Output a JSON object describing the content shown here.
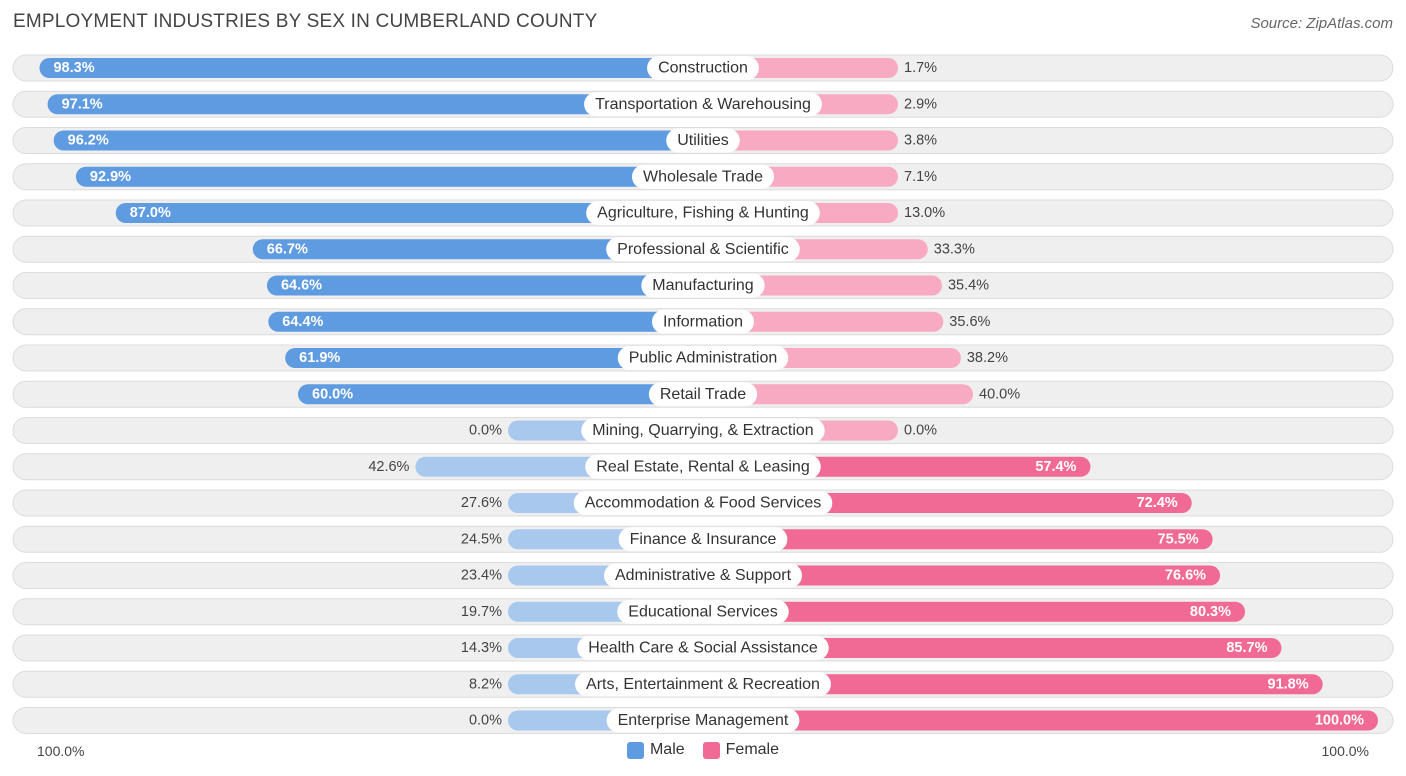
{
  "header": {
    "title": "EMPLOYMENT INDUSTRIES BY SEX IN CUMBERLAND COUNTY",
    "source": "Source: ZipAtlas.com"
  },
  "axis": {
    "left_label": "100.0%",
    "right_label": "100.0%"
  },
  "legend": {
    "male": "Male",
    "female": "Female"
  },
  "colors": {
    "male_strong": "#5f9be0",
    "male_light": "#a9c8ee",
    "female_strong": "#f06a95",
    "female_light": "#f7aac2",
    "row_bg": "#efefef",
    "row_border": "#dcdcdc"
  },
  "chart_data": {
    "type": "bar",
    "title": "EMPLOYMENT INDUSTRIES BY SEX IN CUMBERLAND COUNTY",
    "orientation": "horizontal-diverging",
    "xlim": [
      -100,
      100
    ],
    "categories": [
      "Construction",
      "Transportation & Warehousing",
      "Utilities",
      "Wholesale Trade",
      "Agriculture, Fishing & Hunting",
      "Professional & Scientific",
      "Manufacturing",
      "Information",
      "Public Administration",
      "Retail Trade",
      "Mining, Quarrying, & Extraction",
      "Real Estate, Rental & Leasing",
      "Accommodation & Food Services",
      "Finance & Insurance",
      "Administrative & Support",
      "Educational Services",
      "Health Care & Social Assistance",
      "Arts, Entertainment & Recreation",
      "Enterprise Management"
    ],
    "series": [
      {
        "name": "Male",
        "values": [
          98.3,
          97.1,
          96.2,
          92.9,
          87.0,
          66.7,
          64.6,
          64.4,
          61.9,
          60.0,
          0.0,
          42.6,
          27.6,
          24.5,
          23.4,
          19.7,
          14.3,
          8.2,
          0.0
        ],
        "labels": [
          "98.3%",
          "97.1%",
          "96.2%",
          "92.9%",
          "87.0%",
          "66.7%",
          "64.6%",
          "64.4%",
          "61.9%",
          "60.0%",
          "0.0%",
          "42.6%",
          "27.6%",
          "24.5%",
          "23.4%",
          "19.7%",
          "14.3%",
          "8.2%",
          "0.0%"
        ]
      },
      {
        "name": "Female",
        "values": [
          1.7,
          2.9,
          3.8,
          7.1,
          13.0,
          33.3,
          35.4,
          35.6,
          38.2,
          40.0,
          0.0,
          57.4,
          72.4,
          75.5,
          76.6,
          80.3,
          85.7,
          91.8,
          100.0
        ],
        "labels": [
          "1.7%",
          "2.9%",
          "3.8%",
          "7.1%",
          "13.0%",
          "33.3%",
          "35.4%",
          "35.6%",
          "38.2%",
          "40.0%",
          "0.0%",
          "57.4%",
          "72.4%",
          "75.5%",
          "76.6%",
          "80.3%",
          "85.7%",
          "91.8%",
          "100.0%"
        ]
      }
    ]
  }
}
